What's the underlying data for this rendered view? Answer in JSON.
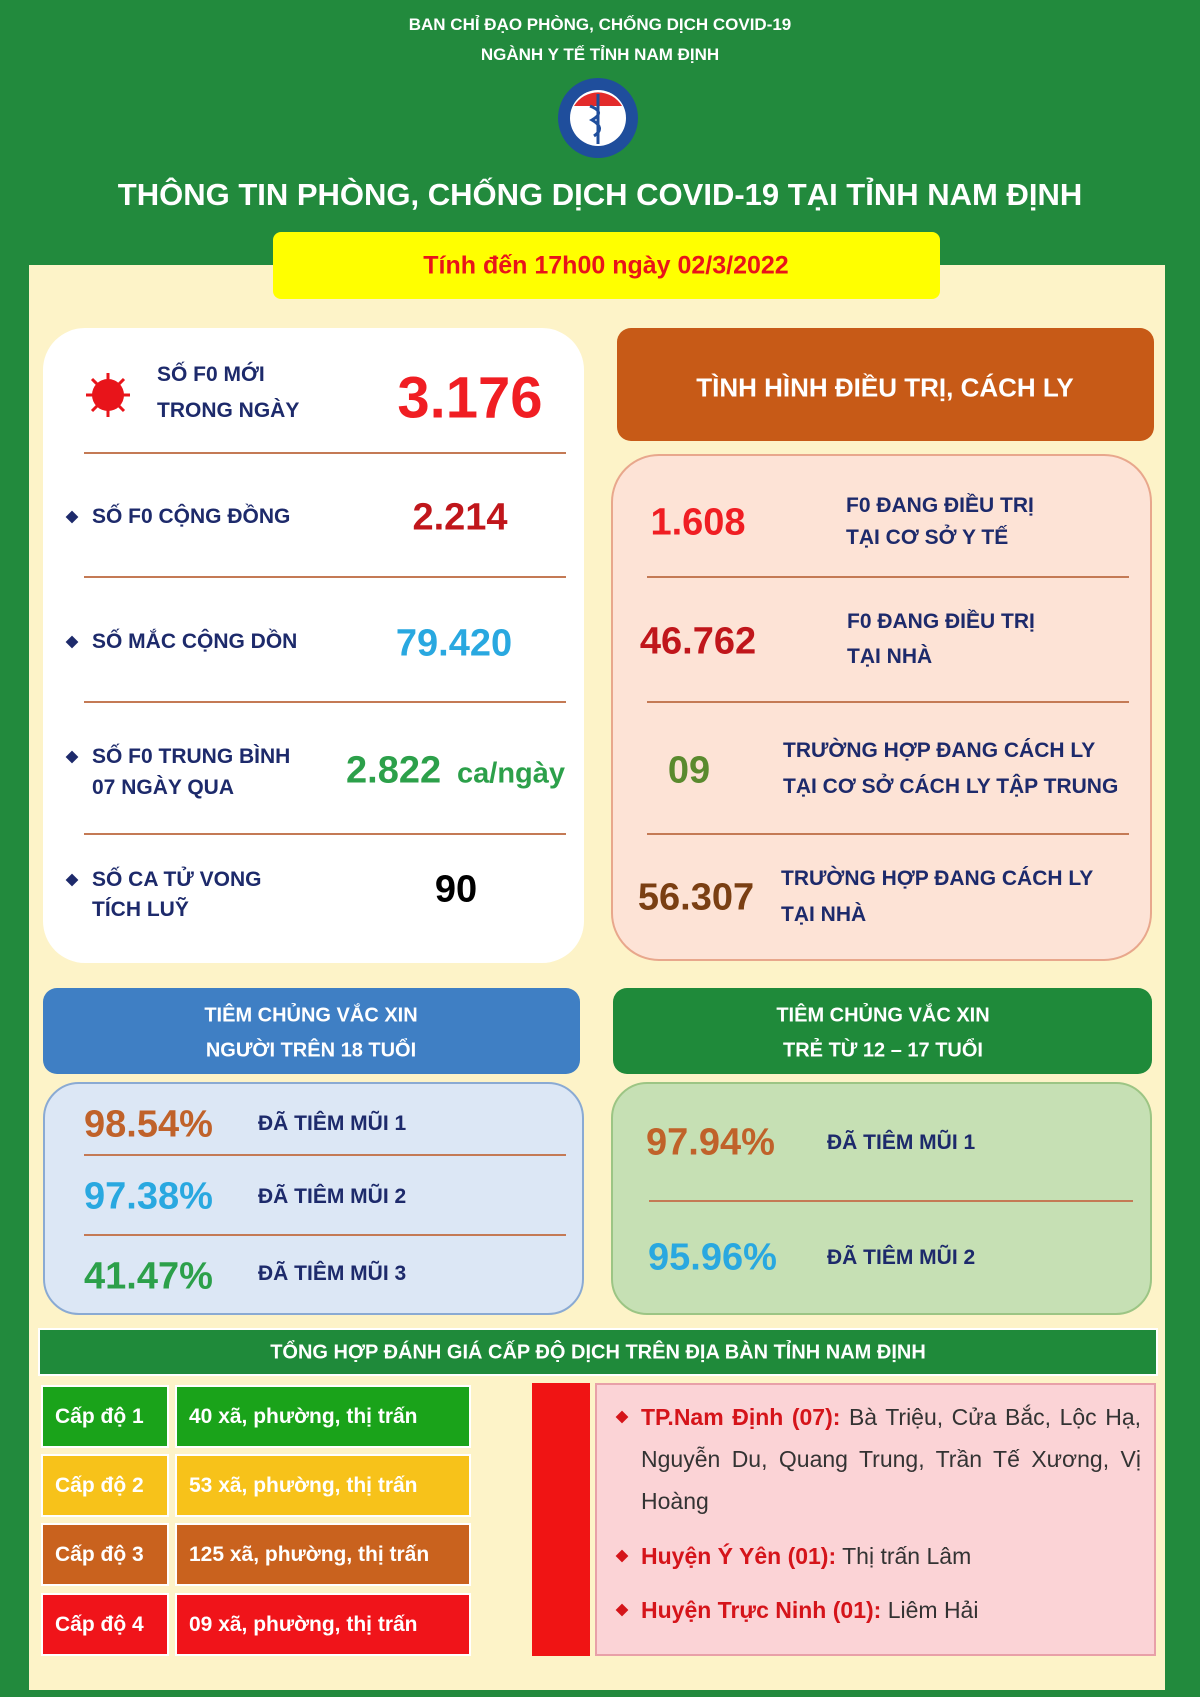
{
  "header": {
    "lines": [
      "BAN CHỈ ĐẠO PHÒNG, CHỐNG DỊCH COVID-19",
      "NGÀNH Y TẾ TỈNH NAM ĐỊNH"
    ],
    "title": "THÔNG TIN PHÒNG, CHỐNG DỊCH COVID-19 TẠI TỈNH NAM ĐỊNH",
    "date": "Tính đến 17h00 ngày 02/3/2022"
  },
  "cases": [
    {
      "label": [
        "SỐ F0 MỚI",
        "TRONG NGÀY"
      ],
      "value": "3.176"
    },
    {
      "label": [
        "SỐ F0 CỘNG ĐỒNG"
      ],
      "value": "2.214"
    },
    {
      "label": [
        "SỐ MẮC CỘNG DỒN"
      ],
      "value": "79.420"
    },
    {
      "label": [
        "SỐ F0 TRUNG BÌNH",
        "07 NGÀY QUA"
      ],
      "value": "2.822",
      "unit": "ca/ngày"
    },
    {
      "label": [
        "SỐ CA TỬ VONG",
        "TÍCH LUỸ"
      ],
      "value": "90"
    }
  ],
  "treatment": {
    "title": "TÌNH HÌNH ĐIỀU TRỊ, CÁCH LY",
    "items": [
      {
        "value": "1.608",
        "label": [
          "F0 ĐANG ĐIỀU TRỊ",
          "TẠI CƠ SỞ Y TẾ"
        ]
      },
      {
        "value": "46.762",
        "label": [
          "F0 ĐANG ĐIỀU TRỊ",
          "TẠI NHÀ"
        ]
      },
      {
        "value": "09",
        "label": [
          "TRƯỜNG HỢP ĐANG CÁCH LY",
          "TẠI CƠ SỞ CÁCH LY TẬP TRUNG"
        ]
      },
      {
        "value": "56.307",
        "label": [
          "TRƯỜNG HỢP ĐANG CÁCH LY",
          "TẠI NHÀ"
        ]
      }
    ]
  },
  "vaccine_adults": {
    "title": [
      "TIÊM CHỦNG VẮC XIN",
      "NGƯỜI TRÊN 18 TUỔI"
    ],
    "items": [
      {
        "value": "98.54%",
        "label": "ĐÃ TIÊM MŨI 1"
      },
      {
        "value": "97.38%",
        "label": "ĐÃ TIÊM MŨI 2"
      },
      {
        "value": "41.47%",
        "label": "ĐÃ TIÊM MŨI 3"
      }
    ]
  },
  "vaccine_children": {
    "title": [
      "TIÊM CHỦNG VẮC XIN",
      "TRẺ TỪ 12 – 17 TUỔI"
    ],
    "items": [
      {
        "value": "97.94%",
        "label": "ĐÃ TIÊM MŨI 1"
      },
      {
        "value": "95.96%",
        "label": "ĐÃ TIÊM MŨI 2"
      }
    ]
  },
  "levels": {
    "title": "TỔNG HỢP ĐÁNH GIÁ CẤP ĐỘ DỊCH TRÊN ĐỊA BÀN TỈNH NAM ĐỊNH",
    "rows": [
      {
        "level": "Cấp độ 1",
        "areas": "40 xã, phường, thị trấn"
      },
      {
        "level": "Cấp độ 2",
        "areas": "53 xã, phường, thị trấn"
      },
      {
        "level": "Cấp độ 3",
        "areas": "125 xã, phường, thị trấn"
      },
      {
        "level": "Cấp độ 4",
        "areas": "09 xã, phường, thị trấn"
      }
    ],
    "level4_areas": [
      {
        "name": "TP.Nam Định (07):",
        "places": "Bà Triệu, Cửa Bắc, Lộc Hạ, Nguyễn Du, Quang Trung, Trần Tế Xương, Vị Hoàng"
      },
      {
        "name": "Huyện Ý Yên (01):",
        "places": "Thị trấn Lâm"
      },
      {
        "name": "Huyện Trực Ninh (01):",
        "places": "Liêm Hải"
      }
    ]
  }
}
